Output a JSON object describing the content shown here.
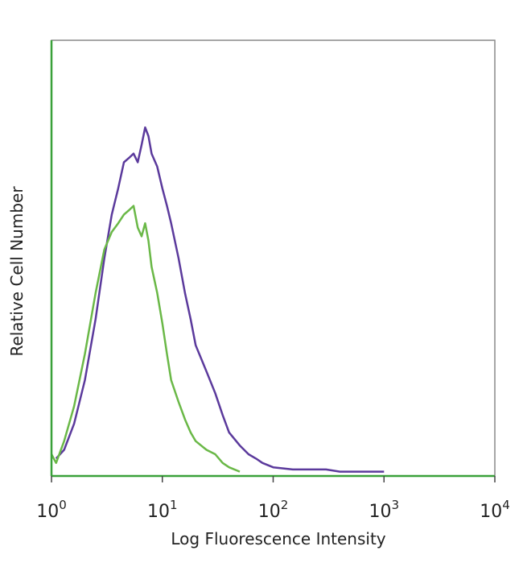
{
  "chart_data": {
    "type": "line",
    "title": "",
    "xlabel": "Log Fluorescence Intensity",
    "ylabel": "Relative Cell Number",
    "x_scale": "log",
    "xlim": [
      1,
      10000
    ],
    "ylim": [
      0,
      1
    ],
    "x_ticks": [
      {
        "base": "10",
        "exp": "0",
        "value": 1
      },
      {
        "base": "10",
        "exp": "1",
        "value": 10
      },
      {
        "base": "10",
        "exp": "2",
        "value": 100
      },
      {
        "base": "10",
        "exp": "3",
        "value": 1000
      },
      {
        "base": "10",
        "exp": "4",
        "value": 10000
      }
    ],
    "grid": false,
    "legend": "none",
    "series": [
      {
        "color": "#5b3a9c",
        "x": [
          1.1,
          1.3,
          1.6,
          2.0,
          2.5,
          3.0,
          3.5,
          4.0,
          4.5,
          5.0,
          5.5,
          6.0,
          6.5,
          7.0,
          7.5,
          8.0,
          9.0,
          10,
          11,
          12,
          14,
          16,
          18,
          20,
          25,
          30,
          35,
          40,
          50,
          60,
          70,
          80,
          100,
          150,
          200,
          300,
          400,
          600,
          1000
        ],
        "y": [
          0.04,
          0.06,
          0.12,
          0.22,
          0.36,
          0.5,
          0.6,
          0.66,
          0.72,
          0.73,
          0.74,
          0.72,
          0.76,
          0.8,
          0.78,
          0.74,
          0.71,
          0.66,
          0.62,
          0.58,
          0.5,
          0.42,
          0.36,
          0.3,
          0.24,
          0.19,
          0.14,
          0.1,
          0.07,
          0.05,
          0.04,
          0.03,
          0.02,
          0.015,
          0.015,
          0.015,
          0.01,
          0.01,
          0.01
        ]
      },
      {
        "color": "#6ab847",
        "x": [
          1.0,
          1.1,
          1.3,
          1.6,
          2.0,
          2.5,
          3.0,
          3.5,
          4.0,
          4.5,
          5.0,
          5.5,
          6.0,
          6.5,
          7.0,
          7.5,
          8.0,
          9.0,
          10,
          11,
          12,
          14,
          16,
          18,
          20,
          25,
          30,
          35,
          40,
          50
        ],
        "y": [
          0.05,
          0.03,
          0.08,
          0.16,
          0.28,
          0.42,
          0.52,
          0.56,
          0.58,
          0.6,
          0.61,
          0.62,
          0.57,
          0.55,
          0.58,
          0.54,
          0.48,
          0.42,
          0.35,
          0.28,
          0.22,
          0.17,
          0.13,
          0.1,
          0.08,
          0.06,
          0.05,
          0.03,
          0.02,
          0.01
        ]
      }
    ]
  }
}
